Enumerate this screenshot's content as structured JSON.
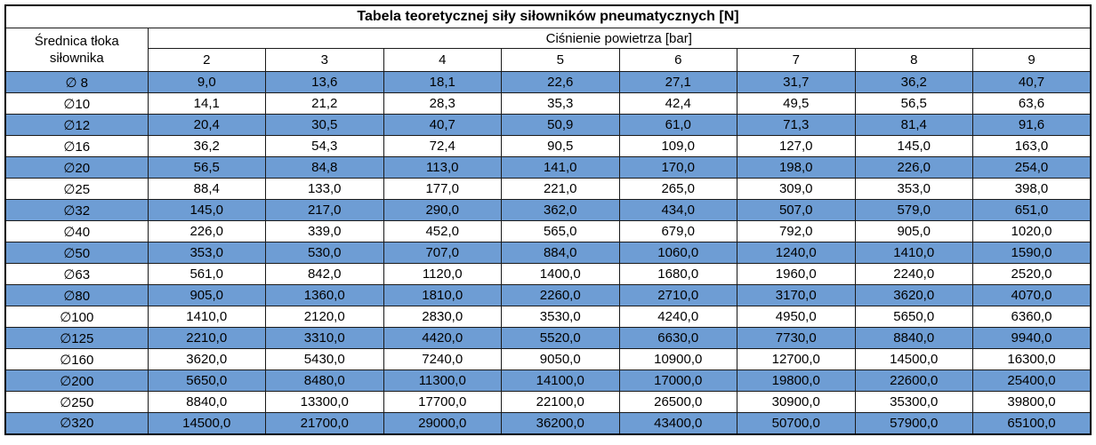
{
  "title": "Tabela teoretycznej siły siłowników pneumatycznych [N]",
  "table": {
    "row_header_label": "Średnica tłoka siłownika",
    "col_group_label": "Ciśnienie powietrza [bar]",
    "pressure_columns": [
      "2",
      "3",
      "4",
      "5",
      "6",
      "7",
      "8",
      "9"
    ],
    "rows": [
      {
        "diameter": "∅ 8",
        "highlighted": true,
        "values": [
          "9,0",
          "13,6",
          "18,1",
          "22,6",
          "27,1",
          "31,7",
          "36,2",
          "40,7"
        ]
      },
      {
        "diameter": "∅10",
        "highlighted": false,
        "values": [
          "14,1",
          "21,2",
          "28,3",
          "35,3",
          "42,4",
          "49,5",
          "56,5",
          "63,6"
        ]
      },
      {
        "diameter": "∅12",
        "highlighted": true,
        "values": [
          "20,4",
          "30,5",
          "40,7",
          "50,9",
          "61,0",
          "71,3",
          "81,4",
          "91,6"
        ]
      },
      {
        "diameter": "∅16",
        "highlighted": false,
        "values": [
          "36,2",
          "54,3",
          "72,4",
          "90,5",
          "109,0",
          "127,0",
          "145,0",
          "163,0"
        ]
      },
      {
        "diameter": "∅20",
        "highlighted": true,
        "values": [
          "56,5",
          "84,8",
          "113,0",
          "141,0",
          "170,0",
          "198,0",
          "226,0",
          "254,0"
        ]
      },
      {
        "diameter": "∅25",
        "highlighted": false,
        "values": [
          "88,4",
          "133,0",
          "177,0",
          "221,0",
          "265,0",
          "309,0",
          "353,0",
          "398,0"
        ]
      },
      {
        "diameter": "∅32",
        "highlighted": true,
        "values": [
          "145,0",
          "217,0",
          "290,0",
          "362,0",
          "434,0",
          "507,0",
          "579,0",
          "651,0"
        ]
      },
      {
        "diameter": "∅40",
        "highlighted": false,
        "values": [
          "226,0",
          "339,0",
          "452,0",
          "565,0",
          "679,0",
          "792,0",
          "905,0",
          "1020,0"
        ]
      },
      {
        "diameter": "∅50",
        "highlighted": true,
        "values": [
          "353,0",
          "530,0",
          "707,0",
          "884,0",
          "1060,0",
          "1240,0",
          "1410,0",
          "1590,0"
        ]
      },
      {
        "diameter": "∅63",
        "highlighted": false,
        "values": [
          "561,0",
          "842,0",
          "1120,0",
          "1400,0",
          "1680,0",
          "1960,0",
          "2240,0",
          "2520,0"
        ]
      },
      {
        "diameter": "∅80",
        "highlighted": true,
        "values": [
          "905,0",
          "1360,0",
          "1810,0",
          "2260,0",
          "2710,0",
          "3170,0",
          "3620,0",
          "4070,0"
        ]
      },
      {
        "diameter": "∅100",
        "highlighted": false,
        "values": [
          "1410,0",
          "2120,0",
          "2830,0",
          "3530,0",
          "4240,0",
          "4950,0",
          "5650,0",
          "6360,0"
        ]
      },
      {
        "diameter": "∅125",
        "highlighted": true,
        "values": [
          "2210,0",
          "3310,0",
          "4420,0",
          "5520,0",
          "6630,0",
          "7730,0",
          "8840,0",
          "9940,0"
        ]
      },
      {
        "diameter": "∅160",
        "highlighted": false,
        "values": [
          "3620,0",
          "5430,0",
          "7240,0",
          "9050,0",
          "10900,0",
          "12700,0",
          "14500,0",
          "16300,0"
        ]
      },
      {
        "diameter": "∅200",
        "highlighted": true,
        "values": [
          "5650,0",
          "8480,0",
          "11300,0",
          "14100,0",
          "17000,0",
          "19800,0",
          "22600,0",
          "25400,0"
        ]
      },
      {
        "diameter": "∅250",
        "highlighted": false,
        "values": [
          "8840,0",
          "13300,0",
          "17700,0",
          "22100,0",
          "26500,0",
          "30900,0",
          "35300,0",
          "39800,0"
        ]
      },
      {
        "diameter": "∅320",
        "highlighted": true,
        "values": [
          "14500,0",
          "21700,0",
          "29000,0",
          "36200,0",
          "43400,0",
          "50700,0",
          "57900,0",
          "65100,0"
        ]
      }
    ]
  },
  "colors": {
    "row_highlight": "#6e9dd4",
    "border": "#1a1a1a",
    "outer_border": "#000000",
    "background": "#ffffff",
    "text": "#000000"
  },
  "chart_data": {
    "type": "table",
    "title": "Tabela teoretycznej siły siłowników pneumatycznych [N]",
    "row_axis_label": "Średnica tłoka siłownika",
    "column_axis_label": "Ciśnienie powietrza [bar]",
    "columns": [
      2,
      3,
      4,
      5,
      6,
      7,
      8,
      9
    ],
    "rows": [
      "∅ 8",
      "∅10",
      "∅12",
      "∅16",
      "∅20",
      "∅25",
      "∅32",
      "∅40",
      "∅50",
      "∅63",
      "∅80",
      "∅100",
      "∅125",
      "∅160",
      "∅200",
      "∅250",
      "∅320"
    ],
    "values": [
      [
        9.0,
        13.6,
        18.1,
        22.6,
        27.1,
        31.7,
        36.2,
        40.7
      ],
      [
        14.1,
        21.2,
        28.3,
        35.3,
        42.4,
        49.5,
        56.5,
        63.6
      ],
      [
        20.4,
        30.5,
        40.7,
        50.9,
        61.0,
        71.3,
        81.4,
        91.6
      ],
      [
        36.2,
        54.3,
        72.4,
        90.5,
        109.0,
        127.0,
        145.0,
        163.0
      ],
      [
        56.5,
        84.8,
        113.0,
        141.0,
        170.0,
        198.0,
        226.0,
        254.0
      ],
      [
        88.4,
        133.0,
        177.0,
        221.0,
        265.0,
        309.0,
        353.0,
        398.0
      ],
      [
        145.0,
        217.0,
        290.0,
        362.0,
        434.0,
        507.0,
        579.0,
        651.0
      ],
      [
        226.0,
        339.0,
        452.0,
        565.0,
        679.0,
        792.0,
        905.0,
        1020.0
      ],
      [
        353.0,
        530.0,
        707.0,
        884.0,
        1060.0,
        1240.0,
        1410.0,
        1590.0
      ],
      [
        561.0,
        842.0,
        1120.0,
        1400.0,
        1680.0,
        1960.0,
        2240.0,
        2520.0
      ],
      [
        905.0,
        1360.0,
        1810.0,
        2260.0,
        2710.0,
        3170.0,
        3620.0,
        4070.0
      ],
      [
        1410.0,
        2120.0,
        2830.0,
        3530.0,
        4240.0,
        4950.0,
        5650.0,
        6360.0
      ],
      [
        2210.0,
        3310.0,
        4420.0,
        5520.0,
        6630.0,
        7730.0,
        8840.0,
        9940.0
      ],
      [
        3620.0,
        5430.0,
        7240.0,
        9050.0,
        10900.0,
        12700.0,
        14500.0,
        16300.0
      ],
      [
        5650.0,
        8480.0,
        11300.0,
        14100.0,
        17000.0,
        19800.0,
        22600.0,
        25400.0
      ],
      [
        8840.0,
        13300.0,
        17700.0,
        22100.0,
        26500.0,
        30900.0,
        35300.0,
        39800.0
      ],
      [
        14500.0,
        21700.0,
        29000.0,
        36200.0,
        43400.0,
        50700.0,
        57900.0,
        65100.0
      ]
    ]
  }
}
